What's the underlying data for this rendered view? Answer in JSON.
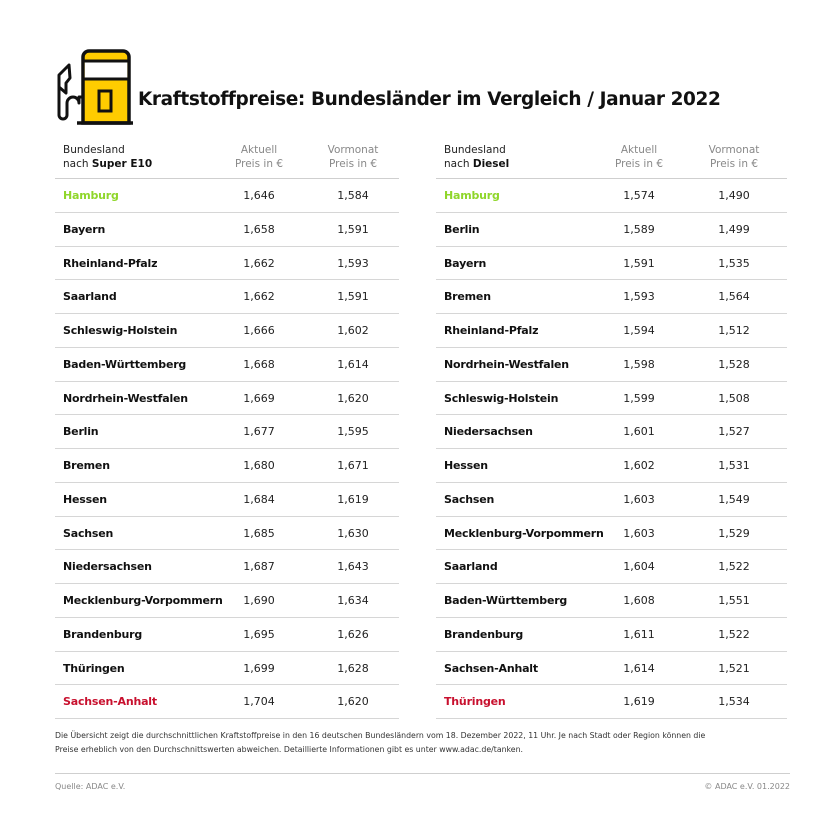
{
  "header": {
    "title": "Kraftstoffpreise: Bundesländer im Vergleich / Januar 2022",
    "icon": "fuel-pump-icon",
    "icon_color": "#FFCC00"
  },
  "colors": {
    "best": "#8FD62A",
    "worst": "#C8102E",
    "accent": "#FFCC00"
  },
  "super_e10": {
    "header": {
      "col1_line1": "Bundesland",
      "col1_prefix": "nach ",
      "col1_bold": "Super E10",
      "col2_line1": "Aktuell",
      "col2_line2": "Preis in €",
      "col3_line1": "Vormonat",
      "col3_line2": "Preis in €"
    },
    "rows": [
      {
        "state": "Hamburg",
        "current": "1,646",
        "previous": "1,584",
        "highlight": "best"
      },
      {
        "state": "Bayern",
        "current": "1,658",
        "previous": "1,591"
      },
      {
        "state": "Rheinland-Pfalz",
        "current": "1,662",
        "previous": "1,593"
      },
      {
        "state": "Saarland",
        "current": "1,662",
        "previous": "1,591"
      },
      {
        "state": "Schleswig-Holstein",
        "current": "1,666",
        "previous": "1,602"
      },
      {
        "state": "Baden-Württemberg",
        "current": "1,668",
        "previous": "1,614"
      },
      {
        "state": "Nordrhein-Westfalen",
        "current": "1,669",
        "previous": "1,620"
      },
      {
        "state": "Berlin",
        "current": "1,677",
        "previous": "1,595"
      },
      {
        "state": "Bremen",
        "current": "1,680",
        "previous": "1,671"
      },
      {
        "state": "Hessen",
        "current": "1,684",
        "previous": "1,619"
      },
      {
        "state": "Sachsen",
        "current": "1,685",
        "previous": "1,630"
      },
      {
        "state": "Niedersachsen",
        "current": "1,687",
        "previous": "1,643"
      },
      {
        "state": "Mecklenburg-Vorpommern",
        "current": "1,690",
        "previous": "1,634"
      },
      {
        "state": "Brandenburg",
        "current": "1,695",
        "previous": "1,626"
      },
      {
        "state": "Thüringen",
        "current": "1,699",
        "previous": "1,628"
      },
      {
        "state": "Sachsen-Anhalt",
        "current": "1,704",
        "previous": "1,620",
        "highlight": "worst"
      }
    ]
  },
  "diesel": {
    "header": {
      "col1_line1": "Bundesland",
      "col1_prefix": "nach ",
      "col1_bold": "Diesel",
      "col2_line1": "Aktuell",
      "col2_line2": "Preis in €",
      "col3_line1": "Vormonat",
      "col3_line2": "Preis in €"
    },
    "rows": [
      {
        "state": "Hamburg",
        "current": "1,574",
        "previous": "1,490",
        "highlight": "best"
      },
      {
        "state": "Berlin",
        "current": "1,589",
        "previous": "1,499"
      },
      {
        "state": "Bayern",
        "current": "1,591",
        "previous": "1,535"
      },
      {
        "state": "Bremen",
        "current": "1,593",
        "previous": "1,564"
      },
      {
        "state": "Rheinland-Pfalz",
        "current": "1,594",
        "previous": "1,512"
      },
      {
        "state": "Nordrhein-Westfalen",
        "current": "1,598",
        "previous": "1,528"
      },
      {
        "state": "Schleswig-Holstein",
        "current": "1,599",
        "previous": "1,508"
      },
      {
        "state": "Niedersachsen",
        "current": "1,601",
        "previous": "1,527"
      },
      {
        "state": "Hessen",
        "current": "1,602",
        "previous": "1,531"
      },
      {
        "state": "Sachsen",
        "current": "1,603",
        "previous": "1,549"
      },
      {
        "state": "Mecklenburg-Vorpommern",
        "current": "1,603",
        "previous": "1,529"
      },
      {
        "state": "Saarland",
        "current": "1,604",
        "previous": "1,522"
      },
      {
        "state": "Baden-Württemberg",
        "current": "1,608",
        "previous": "1,551"
      },
      {
        "state": "Brandenburg",
        "current": "1,611",
        "previous": "1,522"
      },
      {
        "state": "Sachsen-Anhalt",
        "current": "1,614",
        "previous": "1,521"
      },
      {
        "state": "Thüringen",
        "current": "1,619",
        "previous": "1,534",
        "highlight": "worst"
      }
    ]
  },
  "note": {
    "line1": "Die Übersicht zeigt die durchschnittlichen Kraftstoffpreise in den 16 deutschen Bundesländern vom 18. Dezember 2022, 11 Uhr. Je nach Stadt oder Region können die",
    "line2": "Preise erheblich von den Durchschnittswerten abweichen. Detaillierte Informationen gibt es unter www.adac.de/tanken."
  },
  "footer": {
    "source": "Quelle: ADAC e.V.",
    "copyright": "© ADAC e.V. 01.2022"
  }
}
